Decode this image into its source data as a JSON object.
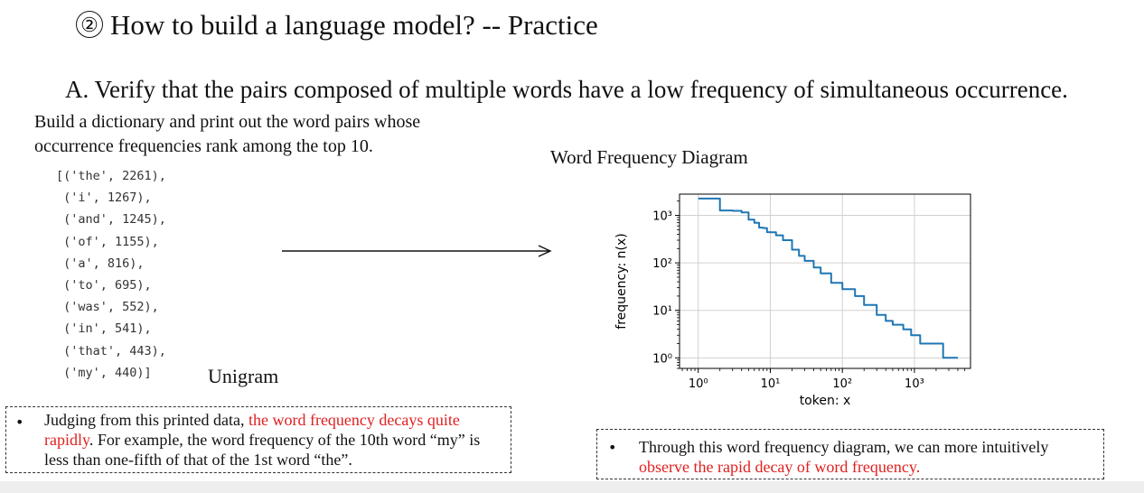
{
  "page": {
    "title_number": "②",
    "title_text": "How to build a language model? -- Practice",
    "subtitle": "A. Verify that the pairs composed of multiple words have a low frequency of simultaneous occurrence.",
    "intro_line1": "Build a dictionary and print out the word pairs whose",
    "intro_line2": "occurrence frequencies rank among the top 10.",
    "code_lines": [
      "[('the', 2261),",
      " ('i', 1267),",
      " ('and', 1245),",
      " ('of', 1155),",
      " ('a', 816),",
      " ('to', 695),",
      " ('was', 552),",
      " ('in', 541),",
      " ('that', 443),",
      " ('my', 440)]"
    ],
    "unigram_label": "Unigram",
    "left_note": {
      "bullet": "•",
      "part1": "Judging from this printed data, ",
      "part2_red": "the word frequency decays quite rapidly",
      "part3": ". For example, the word frequency of the 10th word “my” is less than one-fifth of that of the 1st word “the”."
    },
    "right_note": {
      "bullet": "•",
      "part1": "Through this word frequency diagram, we can more intuitively ",
      "part2_red": "observe the rapid decay of word frequency."
    },
    "colors": {
      "line": "#1f77b4",
      "highlight": "#e02020",
      "grid": "#d0d0d0"
    }
  },
  "chart_data": {
    "type": "line",
    "title": "Word Frequency Diagram",
    "xlabel": "token: x",
    "ylabel": "frequency: n(x)",
    "xscale": "log",
    "yscale": "log",
    "xlim": [
      0.55,
      6000
    ],
    "ylim": [
      0.6,
      2800
    ],
    "grid": true,
    "xticks": [
      1,
      10,
      100,
      1000
    ],
    "xtick_labels": [
      "10⁰",
      "10¹",
      "10²",
      "10³"
    ],
    "yticks": [
      1,
      10,
      100,
      1000
    ],
    "ytick_labels": [
      "10⁰",
      "10¹",
      "10²",
      "10³"
    ],
    "series": [
      {
        "x": [
          1,
          2,
          3,
          4,
          5,
          6,
          7,
          8,
          9,
          10,
          12,
          15,
          20,
          25,
          30,
          40,
          50,
          70,
          100,
          150,
          200,
          300,
          400,
          500,
          700,
          900,
          1000,
          1200,
          1500,
          2000,
          2500,
          3000,
          4000
        ],
        "y": [
          2261,
          1267,
          1245,
          1155,
          816,
          695,
          552,
          541,
          443,
          440,
          380,
          300,
          190,
          140,
          110,
          80,
          60,
          38,
          28,
          20,
          13,
          8,
          6,
          5,
          4,
          3,
          3,
          2,
          2,
          2,
          1,
          1,
          1
        ]
      }
    ]
  }
}
